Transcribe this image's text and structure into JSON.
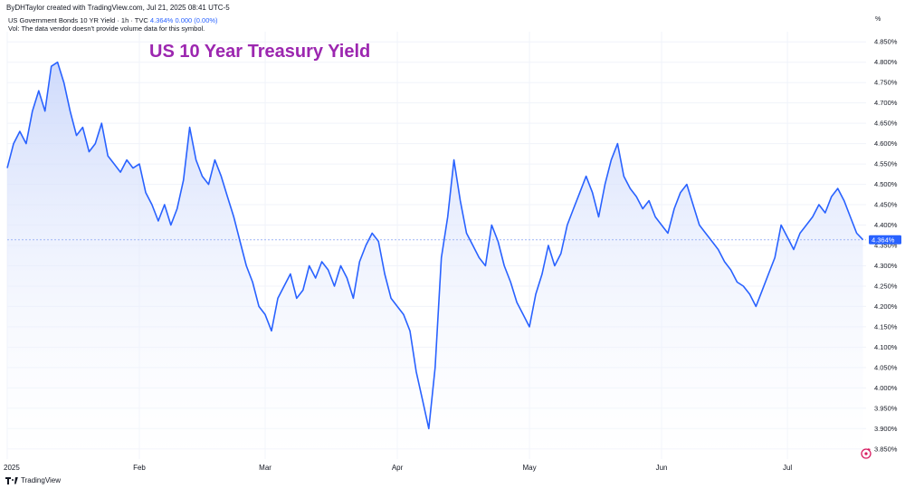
{
  "header": {
    "byline": "ByDHTaylor created with TradingView.com, Jul 21, 2025 08:41 UTC-5",
    "symbol_text": "US Government Bonds 10 YR Yield · 1h · TVC",
    "quote_value": "4.364%",
    "quote_change": "0.000 (0.00%)",
    "volume_note": "Vol: The data vendor doesn't provide volume data for this symbol.",
    "unit_label": "%"
  },
  "footer": {
    "brand": "TradingView"
  },
  "colors": {
    "line": "#2962ff",
    "fill_top": "#c9d6fb",
    "title": "#9c27b0",
    "grid": "#f0f3fa",
    "price_label_bg": "#2962ff"
  },
  "icons": {
    "brand": "tradingview-logo-icon",
    "reload": "reload-icon"
  },
  "chart_data": {
    "type": "area",
    "title": "US 10 Year Treasury Yield",
    "ylim": [
      3.825,
      4.875
    ],
    "y_ticks": [
      "3.850%",
      "3.900%",
      "3.950%",
      "4.000%",
      "4.050%",
      "4.100%",
      "4.150%",
      "4.200%",
      "4.250%",
      "4.300%",
      "4.350%",
      "4.400%",
      "4.450%",
      "4.500%",
      "4.550%",
      "4.600%",
      "4.650%",
      "4.700%",
      "4.750%",
      "4.800%",
      "4.850%"
    ],
    "x_ticks": [
      "2025",
      "Feb",
      "Mar",
      "Apr",
      "May",
      "Jun",
      "Jul"
    ],
    "x_tick_pos": [
      0,
      21,
      41,
      62,
      83,
      104,
      124
    ],
    "x_range": [
      0,
      136.5
    ],
    "last_price": 4.364,
    "last_price_label": "4.364%",
    "grid": true,
    "series": [
      {
        "name": "",
        "x": [
          0,
          1,
          2,
          3,
          4,
          5,
          6,
          7,
          8,
          9,
          10,
          11,
          12,
          13,
          14,
          15,
          16,
          17,
          18,
          19,
          20,
          21,
          22,
          23,
          24,
          25,
          26,
          27,
          28,
          29,
          30,
          31,
          32,
          33,
          34,
          35,
          36,
          37,
          38,
          39,
          40,
          41,
          42,
          43,
          44,
          45,
          46,
          47,
          48,
          49,
          50,
          51,
          52,
          53,
          54,
          55,
          56,
          57,
          58,
          59,
          60,
          61,
          62,
          63,
          64,
          65,
          66,
          67,
          68,
          69,
          70,
          71,
          72,
          73,
          74,
          75,
          76,
          77,
          78,
          79,
          80,
          81,
          82,
          83,
          84,
          85,
          86,
          87,
          88,
          89,
          90,
          91,
          92,
          93,
          94,
          95,
          96,
          97,
          98,
          99,
          100,
          101,
          102,
          103,
          104,
          105,
          106,
          107,
          108,
          109,
          110,
          111,
          112,
          113,
          114,
          115,
          116,
          117,
          118,
          119,
          120,
          121,
          122,
          123,
          124,
          125,
          126,
          127,
          128,
          129,
          130,
          131,
          132,
          133,
          134,
          135,
          136
        ],
        "values": [
          4.54,
          4.6,
          4.63,
          4.6,
          4.68,
          4.73,
          4.68,
          4.79,
          4.8,
          4.75,
          4.68,
          4.62,
          4.64,
          4.58,
          4.6,
          4.65,
          4.57,
          4.55,
          4.53,
          4.56,
          4.54,
          4.55,
          4.48,
          4.45,
          4.41,
          4.45,
          4.4,
          4.44,
          4.51,
          4.64,
          4.56,
          4.52,
          4.5,
          4.56,
          4.52,
          4.47,
          4.42,
          4.36,
          4.3,
          4.26,
          4.2,
          4.18,
          4.14,
          4.22,
          4.25,
          4.28,
          4.22,
          4.24,
          4.3,
          4.27,
          4.31,
          4.29,
          4.25,
          4.3,
          4.27,
          4.22,
          4.31,
          4.35,
          4.38,
          4.36,
          4.28,
          4.22,
          4.2,
          4.18,
          4.14,
          4.04,
          3.97,
          3.9,
          4.05,
          4.32,
          4.42,
          4.56,
          4.46,
          4.38,
          4.35,
          4.32,
          4.3,
          4.4,
          4.36,
          4.3,
          4.26,
          4.21,
          4.18,
          4.15,
          4.23,
          4.28,
          4.35,
          4.3,
          4.33,
          4.4,
          4.44,
          4.48,
          4.52,
          4.48,
          4.42,
          4.5,
          4.56,
          4.6,
          4.52,
          4.49,
          4.47,
          4.44,
          4.46,
          4.42,
          4.4,
          4.38,
          4.44,
          4.48,
          4.5,
          4.45,
          4.4,
          4.38,
          4.36,
          4.34,
          4.31,
          4.29,
          4.26,
          4.25,
          4.23,
          4.2,
          4.24,
          4.28,
          4.32,
          4.4,
          4.37,
          4.34,
          4.38,
          4.4,
          4.42,
          4.45,
          4.43,
          4.47,
          4.49,
          4.46,
          4.42,
          4.38,
          4.364
        ]
      }
    ]
  }
}
